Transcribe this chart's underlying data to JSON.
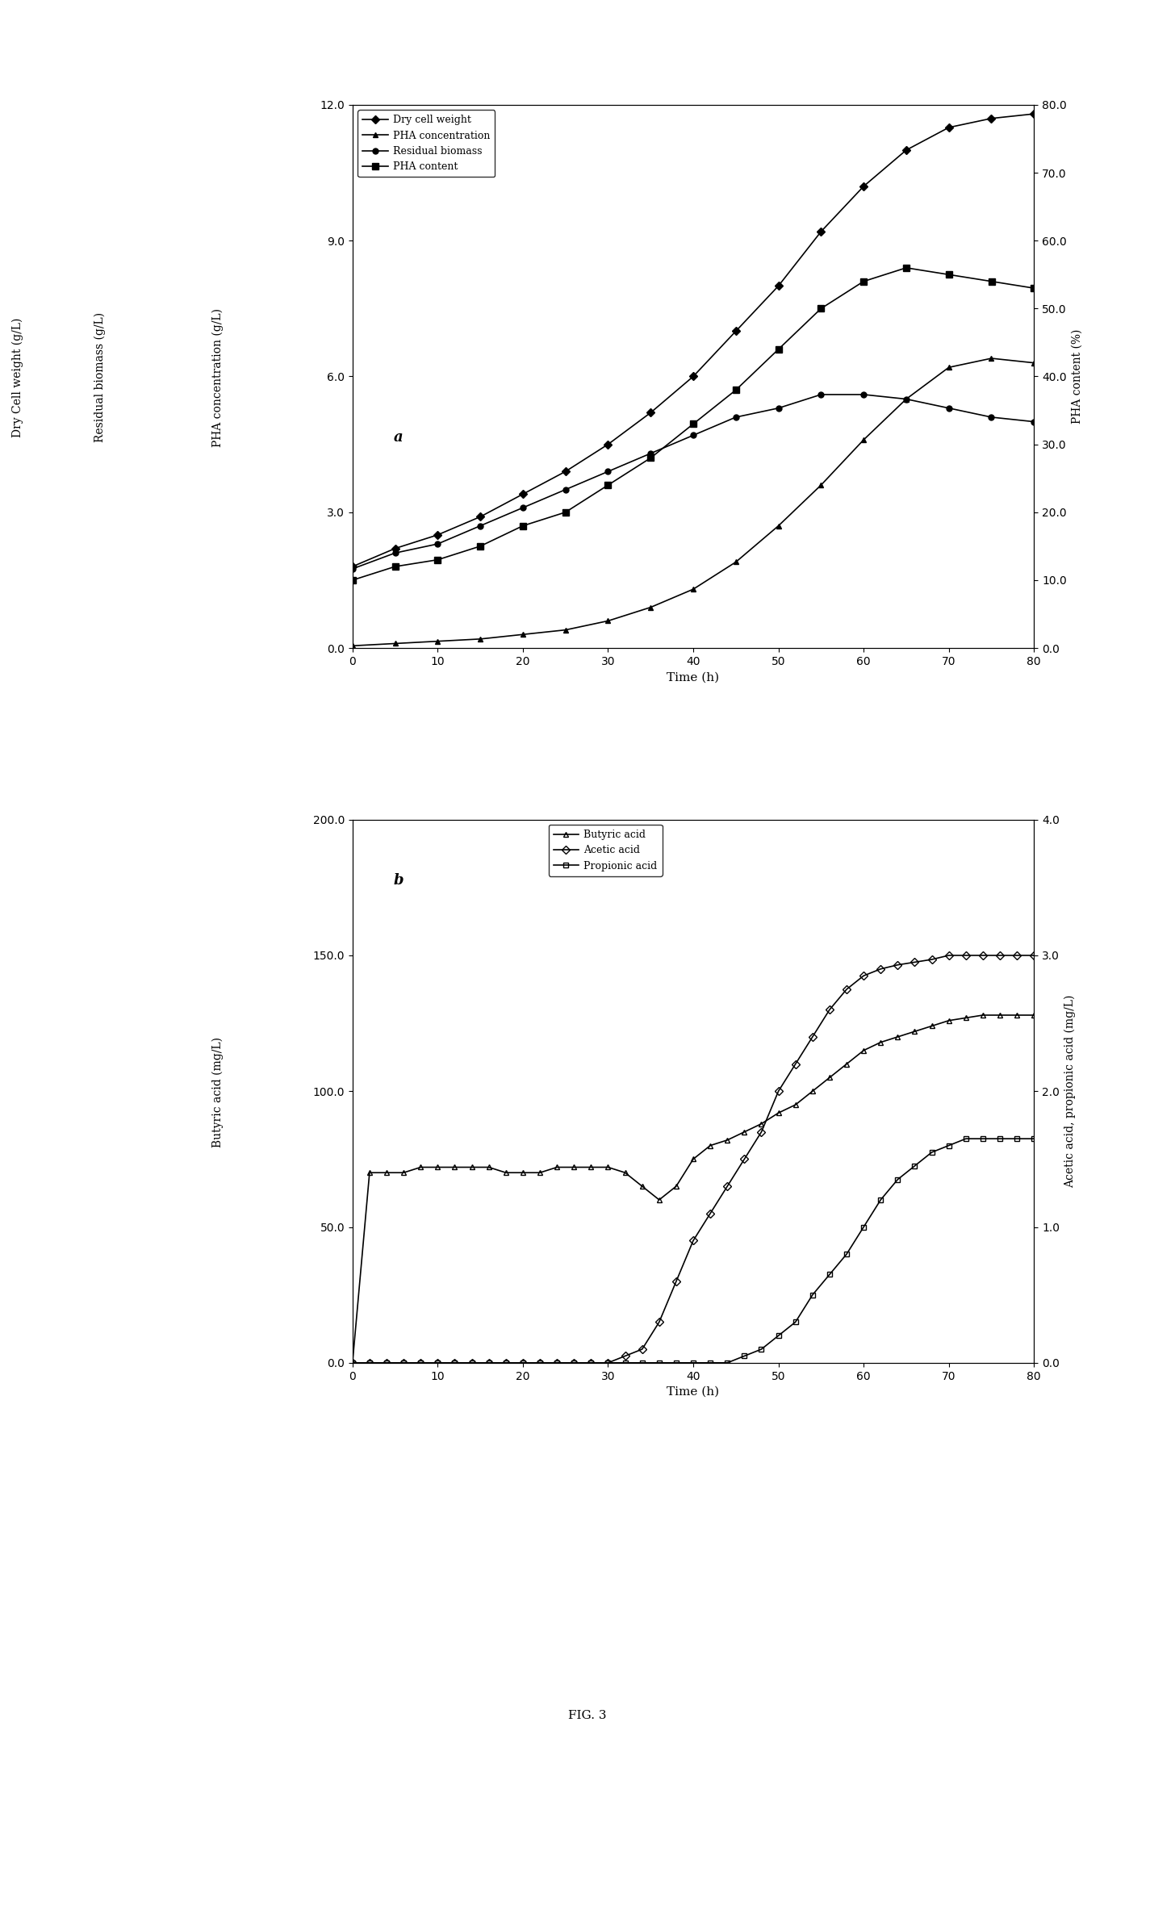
{
  "panel_a": {
    "time": [
      0,
      5,
      10,
      15,
      20,
      25,
      30,
      35,
      40,
      45,
      50,
      55,
      60,
      65,
      70,
      75,
      80
    ],
    "dry_cell_weight": [
      1.8,
      2.2,
      2.5,
      2.9,
      3.4,
      3.9,
      4.5,
      5.2,
      6.0,
      7.0,
      8.0,
      9.2,
      10.2,
      11.0,
      11.5,
      11.7,
      11.8
    ],
    "PHA_concentration": [
      0.05,
      0.1,
      0.15,
      0.2,
      0.3,
      0.4,
      0.6,
      0.9,
      1.3,
      1.9,
      2.7,
      3.6,
      4.6,
      5.5,
      6.2,
      6.4,
      6.3
    ],
    "residual_biomass": [
      1.75,
      2.1,
      2.3,
      2.7,
      3.1,
      3.5,
      3.9,
      4.3,
      4.7,
      5.1,
      5.3,
      5.6,
      5.6,
      5.5,
      5.3,
      5.1,
      5.0
    ],
    "PHA_content": [
      10.0,
      12.0,
      13.0,
      15.0,
      18.0,
      20.0,
      24.0,
      28.0,
      33.0,
      38.0,
      44.0,
      50.0,
      54.0,
      56.0,
      55.0,
      54.0,
      53.0
    ],
    "ylim_left": [
      0.0,
      12.0
    ],
    "yticks_left": [
      0.0,
      3.0,
      6.0,
      9.0,
      12.0
    ],
    "ylim_right": [
      0.0,
      80.0
    ],
    "yticks_right": [
      0.0,
      10.0,
      20.0,
      30.0,
      40.0,
      50.0,
      60.0,
      70.0,
      80.0
    ],
    "xlim": [
      0,
      80
    ],
    "xticks": [
      0,
      10,
      20,
      30,
      40,
      50,
      60,
      70,
      80
    ],
    "xlabel": "Time (h)",
    "ylabel_left1": "Dry Cell weight (g/L)",
    "ylabel_left2": "Residual biomass (g/L)",
    "ylabel_left3": "PHA concentration (g/L)",
    "ylabel_right": "PHA content (%)",
    "label": "a"
  },
  "panel_b": {
    "time_butyric": [
      0,
      2,
      4,
      6,
      8,
      10,
      12,
      14,
      16,
      18,
      20,
      22,
      24,
      26,
      28,
      30,
      32,
      34,
      36,
      38,
      40,
      42,
      44,
      46,
      48,
      50,
      52,
      54,
      56,
      58,
      60,
      62,
      64,
      66,
      68,
      70,
      72,
      74,
      76,
      78,
      80
    ],
    "butyric_acid": [
      0.0,
      70.0,
      70.0,
      70.0,
      72.0,
      72.0,
      72.0,
      72.0,
      72.0,
      70.0,
      70.0,
      70.0,
      72.0,
      72.0,
      72.0,
      72.0,
      70.0,
      65.0,
      60.0,
      65.0,
      75.0,
      80.0,
      82.0,
      85.0,
      88.0,
      92.0,
      95.0,
      100.0,
      105.0,
      110.0,
      115.0,
      118.0,
      120.0,
      122.0,
      124.0,
      126.0,
      127.0,
      128.0,
      128.0,
      128.0,
      128.0
    ],
    "time_acetic": [
      0,
      2,
      4,
      6,
      8,
      10,
      12,
      14,
      16,
      18,
      20,
      22,
      24,
      26,
      28,
      30,
      32,
      34,
      36,
      38,
      40,
      42,
      44,
      46,
      48,
      50,
      52,
      54,
      56,
      58,
      60,
      62,
      64,
      66,
      68,
      70,
      72,
      74,
      76,
      78,
      80
    ],
    "acetic_acid": [
      0.0,
      0.0,
      0.0,
      0.0,
      0.0,
      0.0,
      0.0,
      0.0,
      0.0,
      0.0,
      0.0,
      0.0,
      0.0,
      0.0,
      0.0,
      0.0,
      0.05,
      0.1,
      0.3,
      0.6,
      0.9,
      1.1,
      1.3,
      1.5,
      1.7,
      2.0,
      2.2,
      2.4,
      2.6,
      2.75,
      2.85,
      2.9,
      2.93,
      2.95,
      2.97,
      3.0,
      3.0,
      3.0,
      3.0,
      3.0,
      3.0
    ],
    "time_propionic": [
      0,
      2,
      4,
      6,
      8,
      10,
      12,
      14,
      16,
      18,
      20,
      22,
      24,
      26,
      28,
      30,
      32,
      34,
      36,
      38,
      40,
      42,
      44,
      46,
      48,
      50,
      52,
      54,
      56,
      58,
      60,
      62,
      64,
      66,
      68,
      70,
      72,
      74,
      76,
      78,
      80
    ],
    "propionic_acid": [
      0.0,
      0.0,
      0.0,
      0.0,
      0.0,
      0.0,
      0.0,
      0.0,
      0.0,
      0.0,
      0.0,
      0.0,
      0.0,
      0.0,
      0.0,
      0.0,
      0.0,
      0.0,
      0.0,
      0.0,
      0.0,
      0.0,
      0.0,
      0.05,
      0.1,
      0.2,
      0.3,
      0.5,
      0.65,
      0.8,
      1.0,
      1.2,
      1.35,
      1.45,
      1.55,
      1.6,
      1.65,
      1.65,
      1.65,
      1.65,
      1.65
    ],
    "ylim_left": [
      0.0,
      200.0
    ],
    "yticks_left": [
      0.0,
      50.0,
      100.0,
      150.0,
      200.0
    ],
    "ylim_right": [
      0.0,
      4.0
    ],
    "yticks_right": [
      0.0,
      1.0,
      2.0,
      3.0,
      4.0
    ],
    "xlim": [
      0,
      80
    ],
    "xticks": [
      0,
      10,
      20,
      30,
      40,
      50,
      60,
      70,
      80
    ],
    "xlabel": "Time (h)",
    "ylabel_left": "Butyric acid (mg/L)",
    "ylabel_right": "Acetic acid, propionic acid (mg/L)",
    "label": "b"
  },
  "figure_label": "FIG. 3",
  "fig_width": 14.56,
  "fig_height": 23.62,
  "dpi": 100
}
